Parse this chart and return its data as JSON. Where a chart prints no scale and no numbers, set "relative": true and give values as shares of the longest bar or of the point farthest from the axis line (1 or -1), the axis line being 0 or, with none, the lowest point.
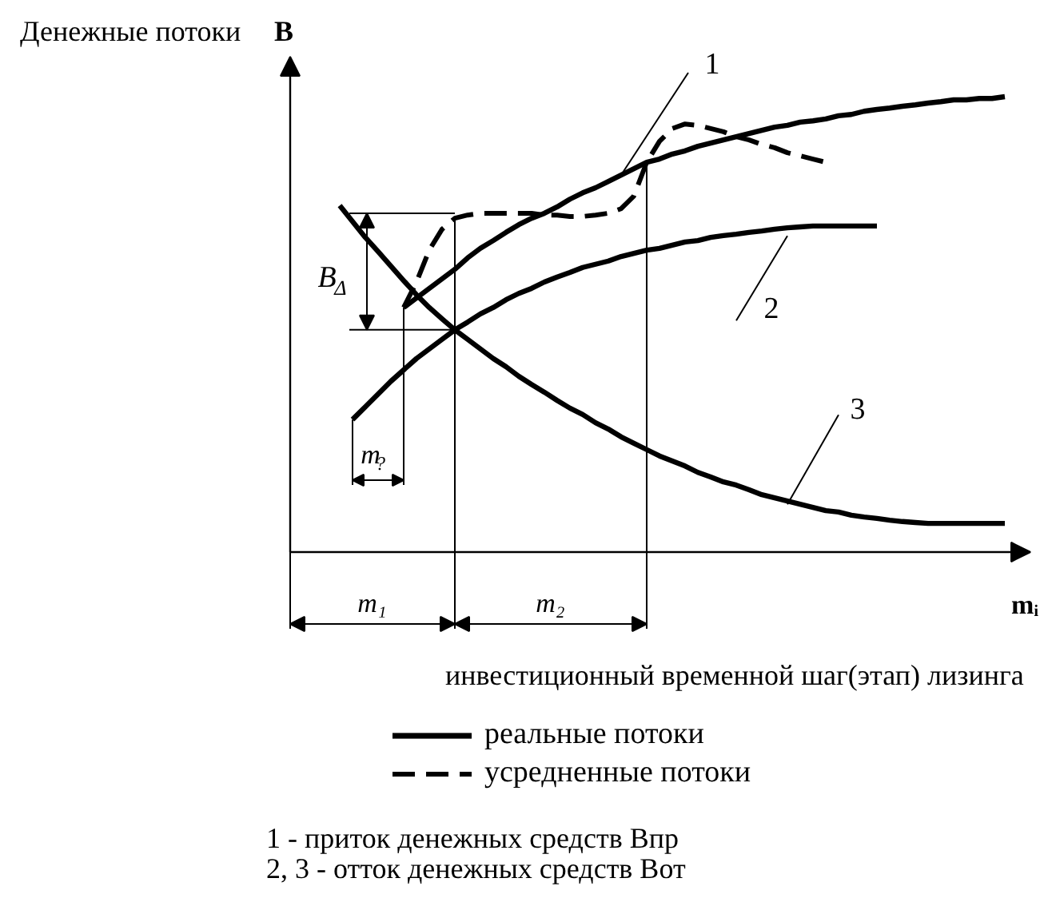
{
  "chart_data": {
    "type": "line",
    "relative": true,
    "line_style": "solid",
    "legend": "bottom",
    "ylabel": "Денежные потоки B",
    "xlabel": "инвестиционный временной шаг(этап) лизинга",
    "categories": [
      null,
      null,
      null,
      null,
      null,
      null,
      null,
      null,
      null,
      null,
      null,
      null,
      null,
      null,
      null,
      null,
      null,
      null,
      null,
      null,
      null,
      null,
      null,
      null,
      null,
      null,
      null,
      null,
      null,
      null,
      null,
      null,
      null,
      null,
      null,
      null,
      null,
      null,
      null,
      null,
      null,
      null,
      null,
      null,
      null,
      null,
      null,
      null,
      null,
      null,
      null,
      null,
      null
    ],
    "series": [
      {
        "name": "1",
        "color": "#000000",
        "values": [
          null,
          null,
          null,
          null,
          null,
          0.537,
          0.558,
          0.579,
          0.6,
          0.621,
          0.646,
          0.667,
          0.684,
          0.702,
          0.719,
          0.733,
          0.744,
          0.758,
          0.775,
          0.789,
          0.8,
          0.814,
          0.828,
          0.842,
          0.856,
          0.863,
          0.874,
          0.881,
          0.891,
          0.898,
          0.905,
          0.912,
          0.919,
          0.926,
          0.933,
          0.937,
          0.944,
          0.947,
          0.951,
          0.958,
          0.961,
          0.968,
          0.972,
          0.975,
          0.979,
          0.982,
          0.986,
          0.989,
          0.993,
          0.993,
          0.996,
          0.996,
          1.0
        ]
      },
      {
        "name": "2",
        "color": "#000000",
        "values": [
          null,
          0.291,
          0.319,
          0.347,
          0.375,
          0.4,
          0.425,
          0.446,
          0.467,
          0.488,
          0.505,
          0.523,
          0.537,
          0.554,
          0.568,
          0.579,
          0.593,
          0.604,
          0.614,
          0.625,
          0.632,
          0.639,
          0.649,
          0.656,
          0.663,
          0.667,
          0.674,
          0.681,
          0.684,
          0.691,
          0.695,
          0.698,
          0.702,
          0.705,
          0.709,
          0.712,
          0.714,
          0.716,
          0.716,
          0.716,
          0.716,
          0.716,
          0.716,
          null,
          null,
          null,
          null,
          null,
          null,
          null,
          null,
          null,
          null
        ]
      },
      {
        "name": "3",
        "color": "#000000",
        "values": [
          0.761,
          0.726,
          0.691,
          0.66,
          0.628,
          0.596,
          0.565,
          0.537,
          0.512,
          0.488,
          0.467,
          0.446,
          0.425,
          0.407,
          0.386,
          0.368,
          0.351,
          0.333,
          0.316,
          0.302,
          0.284,
          0.27,
          0.253,
          0.239,
          0.225,
          0.211,
          0.2,
          0.189,
          0.175,
          0.165,
          0.154,
          0.147,
          0.137,
          0.126,
          0.119,
          0.112,
          0.105,
          0.098,
          0.091,
          0.088,
          0.081,
          0.077,
          0.074,
          0.07,
          0.067,
          0.065,
          0.063,
          0.063,
          0.063,
          0.063,
          0.063,
          0.063,
          0.063
        ]
      },
      {
        "name": "усредненные потоки",
        "color": "#000000",
        "line_style": "dashed",
        "values": [
          null,
          null,
          null,
          null,
          null,
          0.537,
          0.593,
          0.663,
          0.709,
          0.733,
          0.74,
          0.744,
          0.744,
          0.744,
          0.744,
          0.744,
          0.74,
          0.74,
          0.737,
          0.737,
          0.74,
          0.744,
          0.754,
          0.782,
          0.856,
          0.902,
          0.93,
          0.94,
          0.937,
          0.93,
          0.923,
          0.912,
          0.905,
          0.895,
          0.888,
          0.877,
          0.87,
          0.863,
          0.856,
          null,
          null,
          null,
          null,
          null,
          null,
          null,
          null,
          null,
          null,
          null,
          null,
          null,
          null
        ]
      }
    ],
    "ref_lines": [
      {
        "axis": "y",
        "value": 0.744
      },
      {
        "axis": "y",
        "value": 0.488
      }
    ],
    "annotations": [
      "реальные потоки",
      "B$_{Δ}$",
      "m$_{?}$",
      "m₁",
      "m₂",
      "mᵢ",
      "1 - приток денежных средств Впр",
      "2, 3 - отток денежных средств Вот"
    ]
  }
}
